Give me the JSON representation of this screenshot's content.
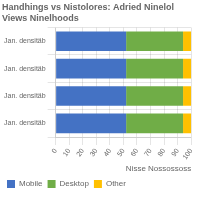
{
  "chart_data": {
    "type": "bar",
    "orientation": "horizontal",
    "stacked": true,
    "title": "Handhings vs Nistolores: Adried Ninelol Views Ninelhoods",
    "xlabel": "Nisse Nossossoss",
    "categories": [
      "Jan. densitäb",
      "Jan. densitäb",
      "Jan. densitäb",
      "Jan. densitäb"
    ],
    "series": [
      {
        "name": "Mobile",
        "color": "#4472c4",
        "values": [
          52,
          52,
          52,
          52
        ]
      },
      {
        "name": "Desktop",
        "color": "#70ad47",
        "values": [
          42,
          42,
          42,
          42
        ]
      },
      {
        "name": "Other",
        "color": "#ffc000",
        "values": [
          6,
          6,
          6,
          6
        ]
      }
    ],
    "xlim": [
      0,
      100
    ],
    "xticks": [
      0,
      10,
      20,
      30,
      40,
      50,
      60,
      70,
      80,
      90,
      100
    ],
    "grid": true,
    "legend": "bottom-left"
  }
}
